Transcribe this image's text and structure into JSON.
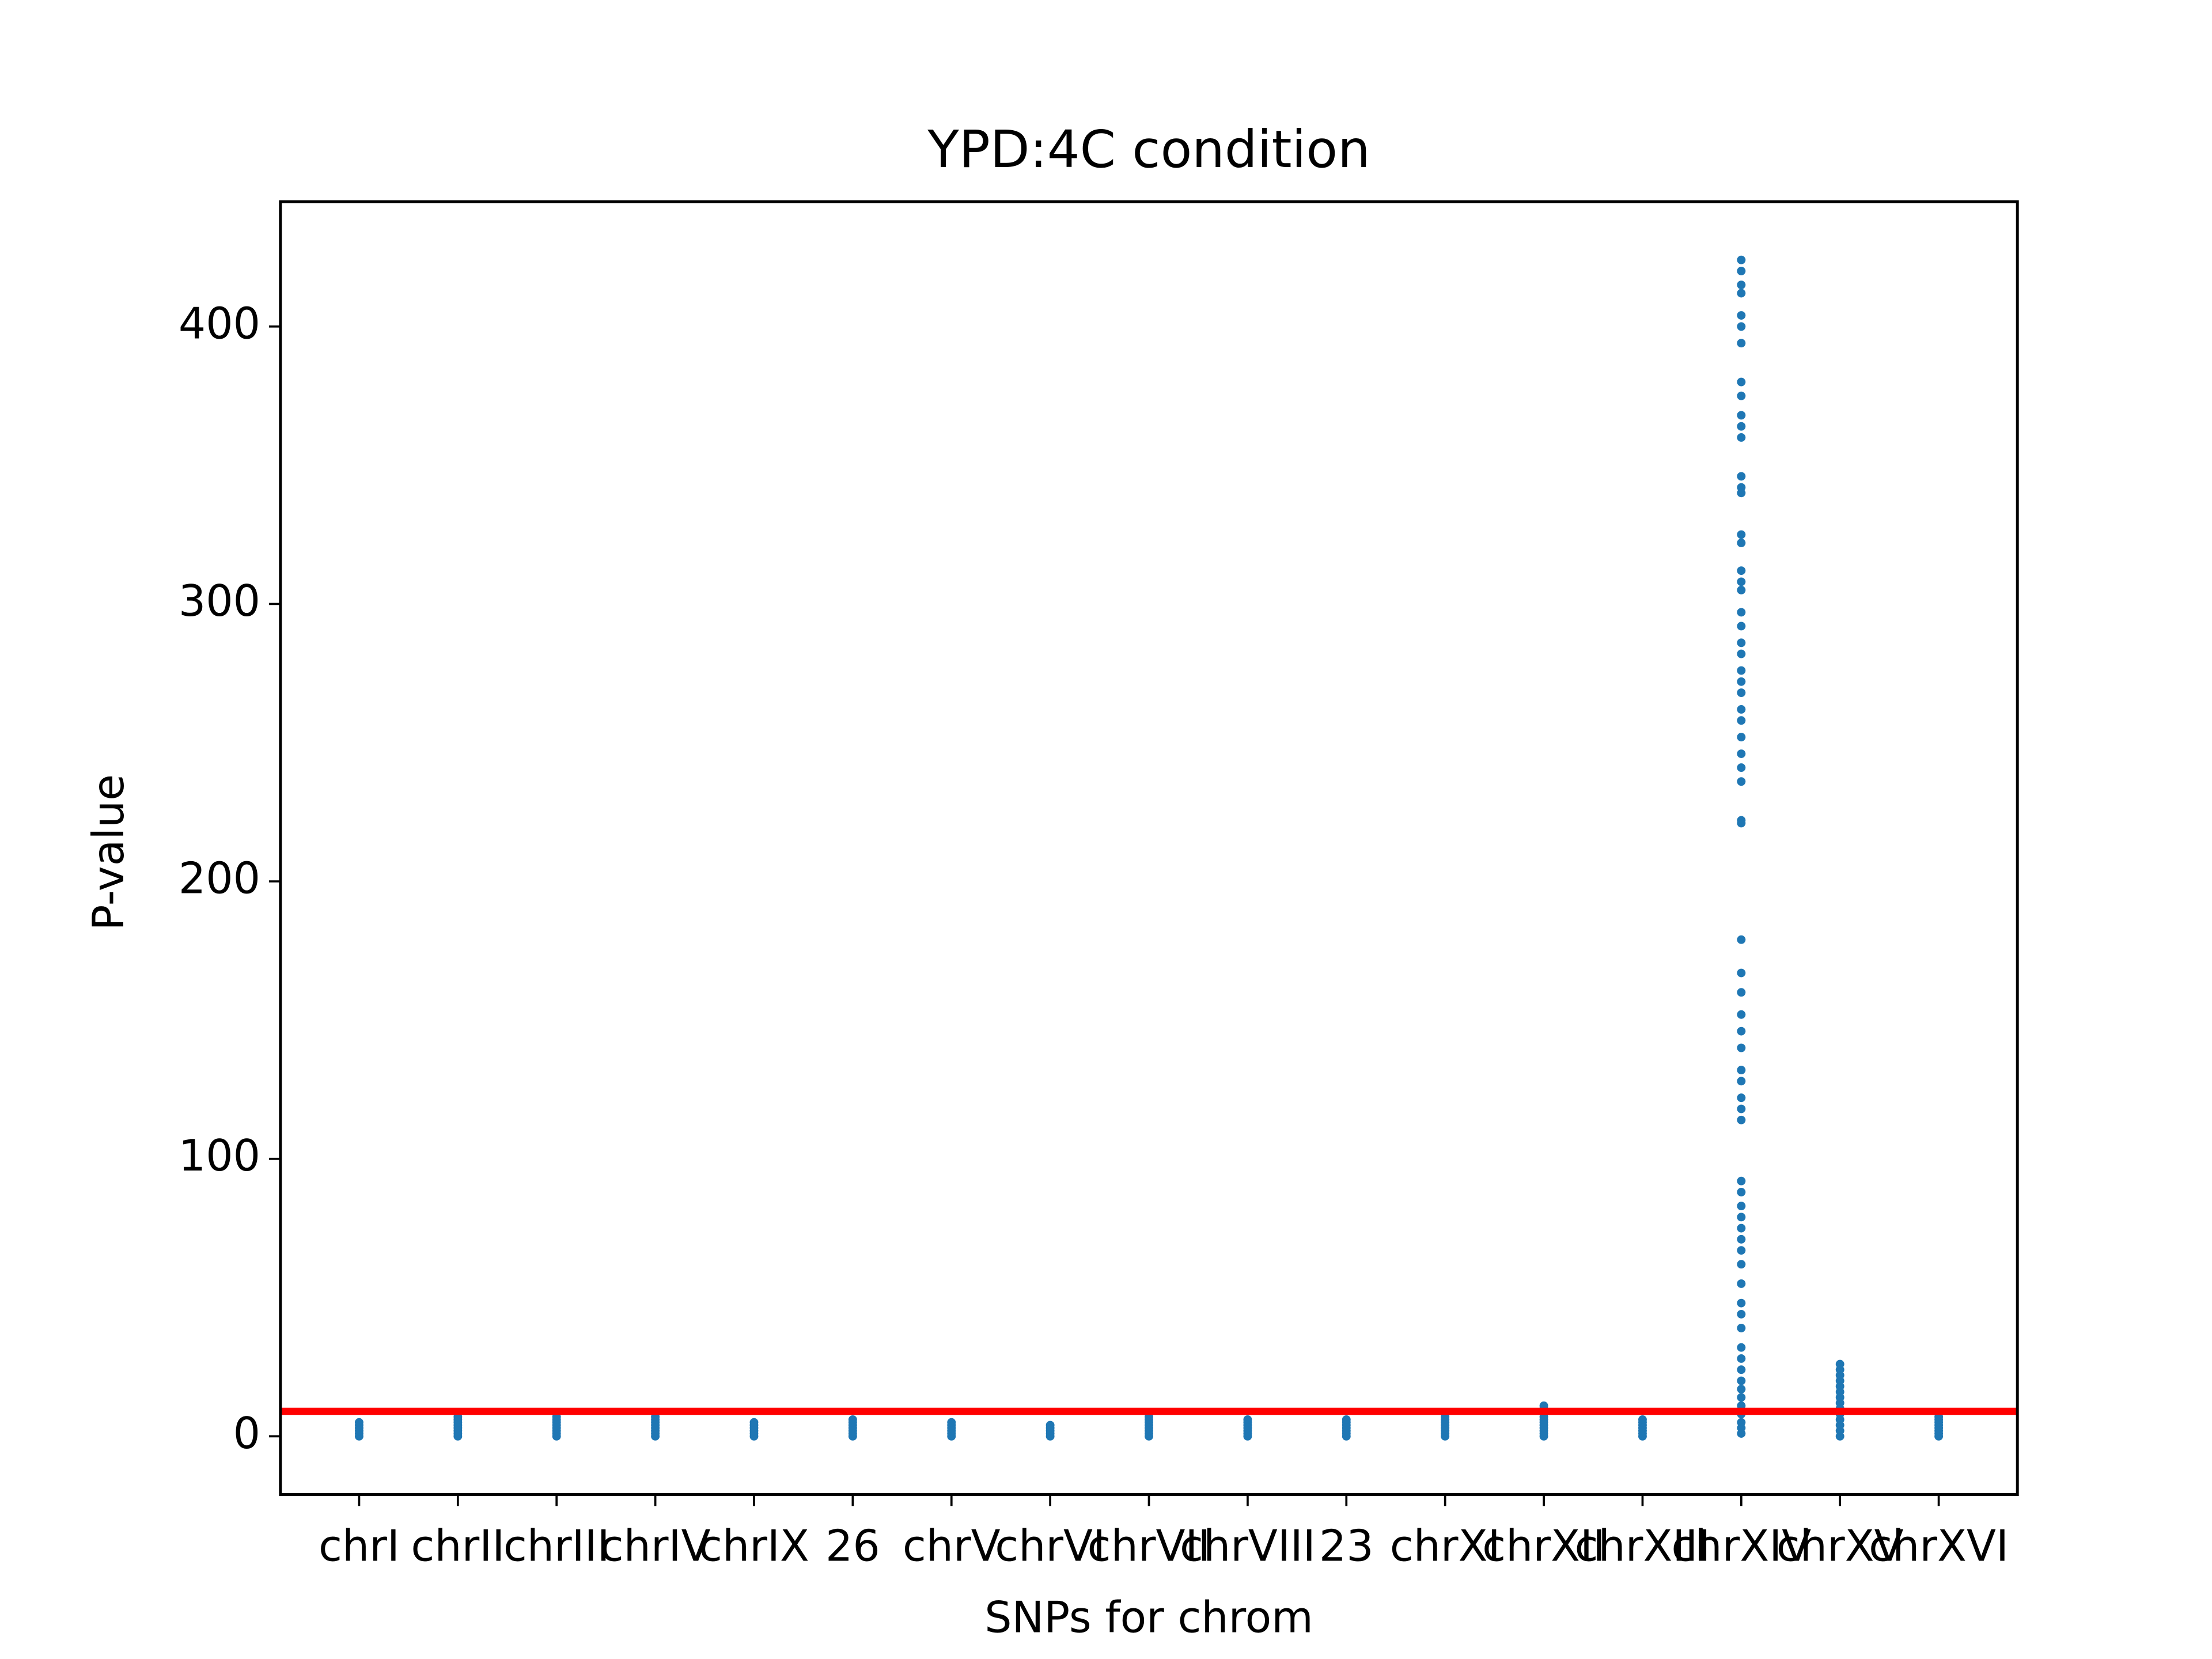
{
  "chart_data": {
    "type": "strip",
    "title": "YPD:4C condition",
    "x_label": "SNPs for chrom",
    "y_label": "P-value",
    "categories": [
      "chrI",
      "chrII",
      "chrIII",
      "chrIV",
      "chrIX",
      "26",
      "chrV",
      "chrVI",
      "chrVII",
      "chrVIII",
      "23",
      "chrXI",
      "chrXII",
      "chrXIII",
      "chrXIV",
      "chrXV",
      "chrXVI"
    ],
    "values": [
      [
        0,
        1,
        2,
        3,
        4,
        5
      ],
      [
        0,
        1,
        2,
        3,
        4,
        5,
        6,
        7
      ],
      [
        0,
        1,
        2,
        3,
        4,
        5,
        6,
        7
      ],
      [
        0,
        1,
        2,
        3,
        4,
        5,
        6,
        7
      ],
      [
        0,
        1,
        2,
        3,
        4,
        5
      ],
      [
        0,
        1,
        2,
        3,
        4,
        5,
        6
      ],
      [
        0,
        1,
        2,
        3,
        4,
        5
      ],
      [
        0,
        1,
        2,
        3,
        4
      ],
      [
        0,
        1,
        2,
        3,
        4,
        5,
        6,
        7
      ],
      [
        0,
        1,
        2,
        3,
        4,
        5,
        6
      ],
      [
        0,
        1,
        2,
        3,
        4,
        5,
        6
      ],
      [
        0,
        1,
        2,
        3,
        4,
        5,
        6,
        7
      ],
      [
        0,
        1,
        2,
        3,
        4,
        5,
        6,
        7,
        8,
        9,
        10,
        11
      ],
      [
        0,
        1,
        2,
        3,
        4,
        5,
        6
      ],
      [
        424,
        420,
        415,
        412,
        404,
        400,
        394,
        380,
        375,
        368,
        364,
        360,
        346,
        342,
        340,
        325,
        322,
        312,
        308,
        305,
        297,
        292,
        286,
        282,
        276,
        272,
        268,
        262,
        258,
        252,
        246,
        241,
        236,
        222,
        221,
        179,
        167,
        160,
        152,
        146,
        140,
        132,
        128,
        122,
        118,
        114,
        92,
        88,
        83,
        79,
        75,
        71,
        67,
        62,
        55,
        48,
        44,
        39,
        32,
        28,
        24,
        20,
        17,
        14,
        11,
        8,
        5,
        3,
        1
      ],
      [
        0,
        2,
        4,
        6,
        8,
        10,
        12,
        14,
        16,
        18,
        20,
        22,
        24,
        26
      ],
      [
        0,
        1,
        2,
        3,
        4,
        5,
        6,
        7
      ]
    ],
    "color": "#1f77b4",
    "threshold": 9,
    "threshold_color": "#ff0000",
    "ylim": [
      -21,
      445
    ],
    "yticks": [
      0,
      100,
      200,
      300,
      400
    ],
    "grid": false
  }
}
